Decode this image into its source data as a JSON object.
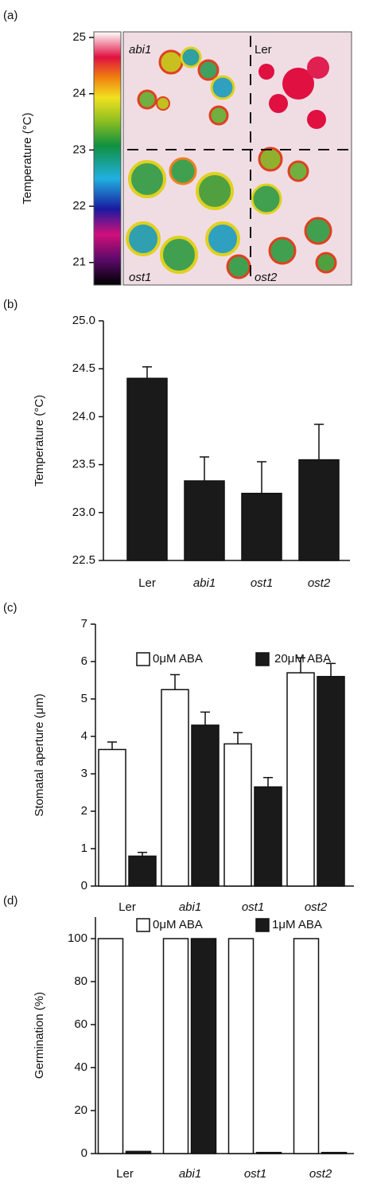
{
  "chart_data": [
    {
      "type": "image",
      "panel": "(a)",
      "ylabel": "Temperature (°C)",
      "ylim": [
        20.6,
        25.1
      ],
      "yticks": [
        21,
        22,
        23,
        24,
        25
      ],
      "labels": [
        "abi1",
        "Ler",
        "ost1",
        "ost2"
      ]
    },
    {
      "type": "bar",
      "panel": "(b)",
      "ylabel": "Temperature (°C)",
      "categories": [
        "Ler",
        "abi1",
        "ost1",
        "ost2"
      ],
      "series": [
        {
          "color": "#1a1a1a",
          "values": [
            24.4,
            23.33,
            23.2,
            23.55
          ],
          "errors": [
            0.12,
            0.25,
            0.33,
            0.37
          ]
        }
      ],
      "ylim": [
        22.5,
        25.0
      ],
      "yticks": [
        {
          "value": 22.5,
          "label": "22.5"
        },
        {
          "value": 23,
          "label": "23.0"
        },
        {
          "value": 23.5,
          "label": "23.5"
        },
        {
          "value": 24,
          "label": "24.0"
        },
        {
          "value": 24.5,
          "label": "24.5"
        },
        {
          "value": 25,
          "label": "25.0"
        }
      ]
    },
    {
      "type": "bar",
      "panel": "(c)",
      "ylabel": "Stomatal aperture (μm)",
      "categories": [
        "Ler",
        "abi1",
        "ost1",
        "ost2"
      ],
      "series": [
        {
          "name": "0μM ABA",
          "color": "#ffffff",
          "values": [
            3.65,
            5.25,
            3.8,
            5.7
          ],
          "errors": [
            0.2,
            0.4,
            0.3,
            0.4
          ]
        },
        {
          "name": "20μM ABA",
          "color": "#1a1a1a",
          "values": [
            0.8,
            4.3,
            2.65,
            5.6
          ],
          "errors": [
            0.1,
            0.35,
            0.25,
            0.35
          ]
        }
      ],
      "ylim": [
        0,
        7
      ],
      "yticks": [
        0,
        1,
        2,
        3,
        4,
        5,
        6,
        7
      ]
    },
    {
      "type": "bar",
      "panel": "(d)",
      "ylabel": "Germination (%)",
      "categories": [
        "Ler",
        "abi1",
        "ost1",
        "ost2"
      ],
      "series": [
        {
          "name": "0μM ABA",
          "color": "#ffffff",
          "values": [
            100,
            100,
            100,
            100
          ]
        },
        {
          "name": "1μM ABA",
          "color": "#1a1a1a",
          "values": [
            1,
            100,
            0.5,
            0.5
          ]
        }
      ],
      "ylim": [
        0,
        110
      ],
      "yticks": [
        0,
        20,
        40,
        60,
        80,
        100
      ]
    }
  ]
}
